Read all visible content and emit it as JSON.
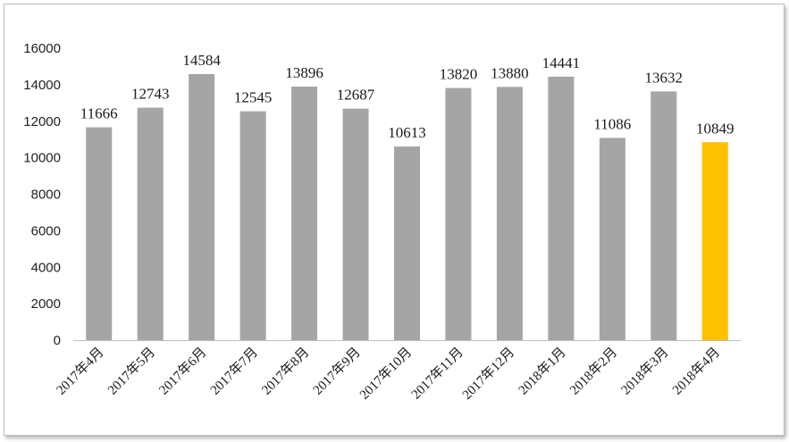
{
  "chart_data": {
    "type": "bar",
    "title": "",
    "xlabel": "",
    "ylabel": "",
    "ylim": [
      0,
      16000
    ],
    "yticks": [
      "0",
      "2000",
      "4000",
      "6000",
      "8000",
      "10000",
      "12000",
      "14000",
      "16000"
    ],
    "categories": [
      "2017年4月",
      "2017年5月",
      "2017年6月",
      "2017年7月",
      "2017年8月",
      "2017年9月",
      "2017年10月",
      "2017年11月",
      "2017年12月",
      "2018年1月",
      "2018年2月",
      "2018年3月",
      "2018年4月"
    ],
    "values": [
      11666,
      12743,
      14584,
      12545,
      13896,
      12687,
      10613,
      13820,
      13880,
      14441,
      11086,
      13632,
      10849
    ],
    "grid": false,
    "legend": "none",
    "colors": {
      "bar": "#a5a5a5",
      "highlight": "#ffc000",
      "axis": "#bfbfbf"
    },
    "highlight_index": 12
  }
}
